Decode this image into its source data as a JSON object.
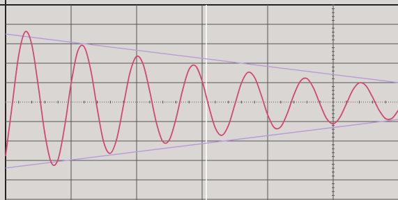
{
  "chart_data": {
    "type": "line",
    "xlim": [
      0,
      6
    ],
    "ylim": [
      -5,
      5
    ],
    "x": [
      0,
      0.1,
      0.2,
      0.3,
      0.4,
      0.5,
      0.6,
      0.7,
      0.8,
      0.9,
      1.0,
      1.1,
      1.2,
      1.3,
      1.4,
      1.5,
      1.6,
      1.7,
      1.8,
      1.9,
      2.0,
      2.1,
      2.2,
      2.3,
      2.4,
      2.5,
      2.6,
      2.7,
      2.8,
      2.9,
      3.0,
      3.1,
      3.2,
      3.3,
      3.4,
      3.5,
      3.6,
      3.7,
      3.8,
      3.9,
      4.0,
      4.1,
      4.2,
      4.3,
      4.4,
      4.5,
      4.6,
      4.7,
      4.8,
      4.9,
      5.0,
      5.1,
      5.2,
      5.3,
      5.4,
      5.5,
      5.6,
      5.7,
      5.8,
      5.9,
      6.0
    ],
    "series": [
      {
        "color": "#d2486f",
        "values": [
          -2.78,
          -0.17,
          2.4,
          3.62,
          2.95,
          0.8,
          -1.64,
          -3.13,
          -2.96,
          -1.29,
          0.95,
          2.61,
          2.84,
          1.65,
          -0.36,
          -2.09,
          -2.63,
          -1.85,
          -0.15,
          1.53,
          2.35,
          1.94,
          0.56,
          -1.04,
          -2.03,
          -1.94,
          -0.87,
          0.59,
          1.68,
          1.86,
          1.08,
          -0.2,
          -1.32,
          -1.71,
          -1.21,
          -0.12,
          0.98,
          1.53,
          1.27,
          0.38,
          -0.65,
          -1.31,
          -1.27,
          -0.58,
          0.37,
          1.08,
          1.21,
          0.72,
          -0.11,
          -0.85,
          -1.11,
          -0.8,
          -0.1,
          0.62,
          0.99,
          0.84,
          0.26,
          -0.41,
          -0.85,
          -0.83,
          -0.39
        ]
      },
      {
        "color": "#b99bd8",
        "x": [
          0,
          6
        ],
        "values": [
          3.5,
          1.0
        ]
      },
      {
        "color": "#b99bd8",
        "x": [
          0,
          6
        ],
        "values": [
          -3.39,
          -0.89
        ]
      }
    ]
  }
}
